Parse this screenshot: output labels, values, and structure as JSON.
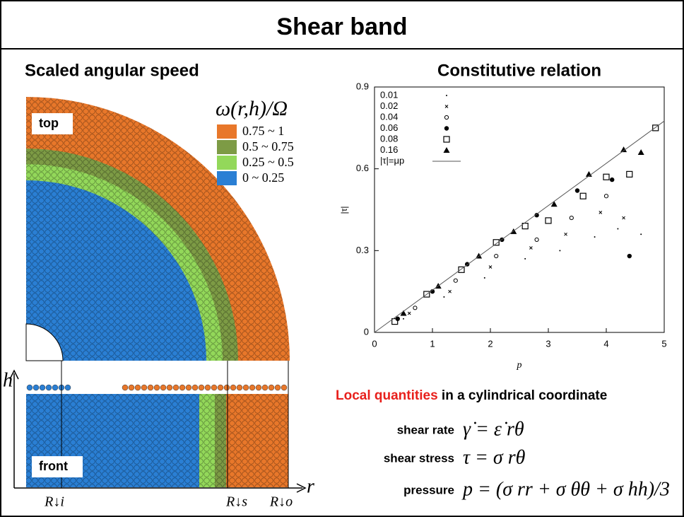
{
  "header": {
    "title": "Shear band"
  },
  "angular_speed": {
    "title": "Scaled angular speed",
    "legend_title": "ω(r,h)/Ω",
    "items": [
      {
        "label": "0.75 ~ 1",
        "color": "#e8772a"
      },
      {
        "label": "0.5 ~ 0.75",
        "color": "#7d9b45"
      },
      {
        "label": "0.25 ~ 0.5",
        "color": "#93d85a"
      },
      {
        "label": "0 ~ 0.25",
        "color": "#2a7fd4"
      }
    ],
    "region_labels": [
      "top",
      "front"
    ],
    "axis_h": "h",
    "axis_r": "r",
    "radii": [
      "R↓i",
      "R↓s",
      "R↓o"
    ]
  },
  "chart_data": {
    "type": "scatter",
    "title": "Constitutive relation",
    "x_label": "p",
    "y_label": "|τ|",
    "xlim": [
      0,
      5
    ],
    "ylim": [
      0,
      0.9
    ],
    "xticks": [
      0,
      1,
      2,
      3,
      4,
      5
    ],
    "yticks": [
      0,
      0.3,
      0.6,
      0.9
    ],
    "legend": "upper left",
    "series": [
      {
        "name": "0.01",
        "color": "#000000",
        "marker": "dot",
        "x": [
          0.5,
          1.2,
          1.9,
          2.6,
          3.2,
          3.8,
          4.2,
          4.6
        ],
        "values": [
          0.05,
          0.13,
          0.2,
          0.27,
          0.3,
          0.35,
          0.38,
          0.36
        ]
      },
      {
        "name": "0.02",
        "color": "#000000",
        "marker": "cross",
        "x": [
          0.6,
          1.3,
          2.0,
          2.7,
          3.3,
          3.9,
          4.3
        ],
        "values": [
          0.07,
          0.15,
          0.24,
          0.31,
          0.36,
          0.44,
          0.42
        ]
      },
      {
        "name": "0.04",
        "color": "#000000",
        "marker": "circle-open",
        "x": [
          0.7,
          1.4,
          2.1,
          2.8,
          3.4,
          4.0
        ],
        "values": [
          0.09,
          0.19,
          0.28,
          0.34,
          0.42,
          0.5
        ]
      },
      {
        "name": "0.06",
        "color": "#000000",
        "marker": "circle",
        "x": [
          0.4,
          1.0,
          1.6,
          2.2,
          2.8,
          3.5,
          4.1,
          4.4
        ],
        "values": [
          0.05,
          0.15,
          0.25,
          0.34,
          0.43,
          0.52,
          0.56,
          0.28
        ]
      },
      {
        "name": "0.08",
        "color": "#000000",
        "marker": "square-open",
        "x": [
          0.35,
          0.9,
          1.5,
          2.1,
          2.6,
          3.0,
          3.6,
          4.0,
          4.4,
          4.85
        ],
        "values": [
          0.04,
          0.14,
          0.23,
          0.33,
          0.39,
          0.41,
          0.5,
          0.57,
          0.58,
          0.75
        ]
      },
      {
        "name": "0.16",
        "color": "#000000",
        "marker": "triangle",
        "x": [
          0.5,
          1.1,
          1.8,
          2.4,
          3.1,
          3.7,
          4.3,
          4.6
        ],
        "values": [
          0.07,
          0.17,
          0.28,
          0.37,
          0.47,
          0.58,
          0.67,
          0.66
        ]
      },
      {
        "name": "|τ|=μp",
        "color": "#555555",
        "marker": "line",
        "x": [
          0,
          5
        ],
        "values": [
          0,
          0.775
        ]
      }
    ]
  },
  "equations": {
    "heading_highlight": "Local quantities",
    "heading_rest": " in a cylindrical coordinate",
    "rows": [
      {
        "label": "shear rate",
        "formula": "γ̇ = ε̇ rθ"
      },
      {
        "label": "shear stress",
        "formula": "τ = σ rθ"
      },
      {
        "label": "pressure",
        "formula": "p = (σ rr + σ θθ + σ hh)/3"
      }
    ]
  }
}
